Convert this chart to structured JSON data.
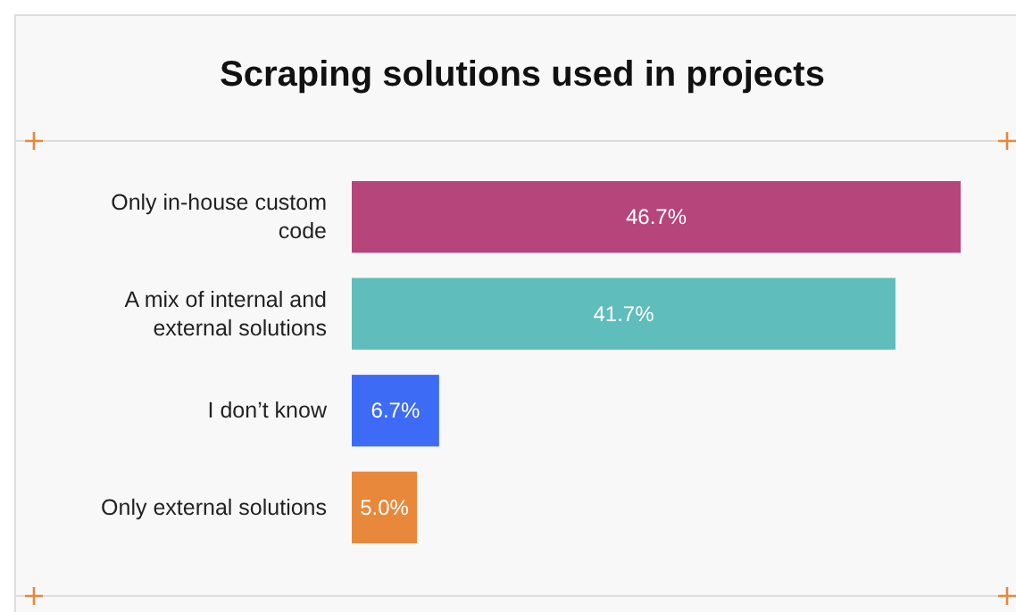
{
  "chart_data": {
    "type": "bar",
    "orientation": "horizontal",
    "title": "Scraping solutions used in projects",
    "categories": [
      "Only in-house custom code",
      "A mix of internal and external solutions",
      "I don’t know",
      "Only external solutions"
    ],
    "values": [
      46.7,
      41.7,
      6.7,
      5.0
    ],
    "colors": [
      "#b5457a",
      "#5fbdbb",
      "#3d6bf5",
      "#e8883a"
    ],
    "value_labels": [
      "46.7%",
      "41.7%",
      "6.7%",
      "5.0%"
    ]
  }
}
